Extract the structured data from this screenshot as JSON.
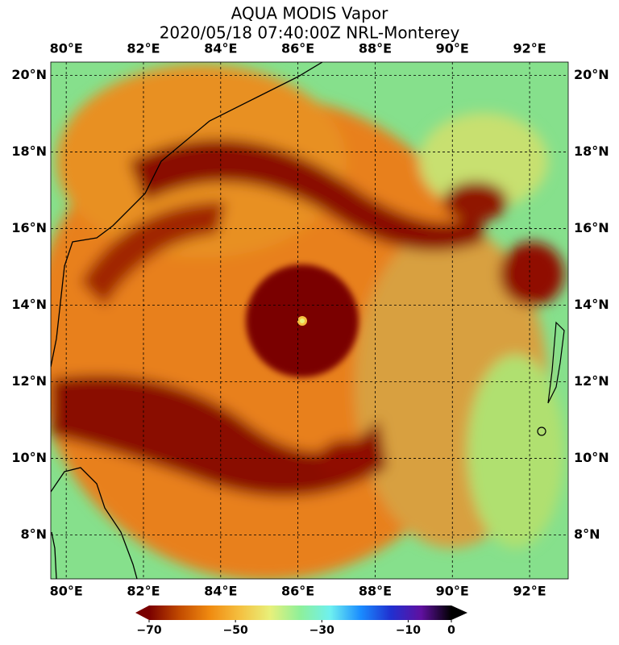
{
  "title": [
    "AQUA MODIS Vapor",
    "2020/05/18 07:40:00Z NRL-Monterey"
  ],
  "map": {
    "lonlim": [
      79.6,
      93.0
    ],
    "latlim": [
      6.85,
      20.35
    ],
    "lonticks": [
      {
        "value": 80,
        "label": "80°E"
      },
      {
        "value": 82,
        "label": "82°E"
      },
      {
        "value": 84,
        "label": "84°E"
      },
      {
        "value": 86,
        "label": "86°E"
      },
      {
        "value": 88,
        "label": "88°E"
      },
      {
        "value": 90,
        "label": "90°E"
      },
      {
        "value": 92,
        "label": "92°E"
      }
    ],
    "latticks": [
      {
        "value": 20,
        "label": "20°N"
      },
      {
        "value": 18,
        "label": "18°N"
      },
      {
        "value": 16,
        "label": "16°N"
      },
      {
        "value": 14,
        "label": "14°N"
      },
      {
        "value": 12,
        "label": "12°N"
      },
      {
        "value": 10,
        "label": "10°N"
      },
      {
        "value": 8,
        "label": "8°N"
      }
    ],
    "grid": true
  },
  "colorbar": {
    "lim": [
      -70,
      0
    ],
    "ticks": [
      {
        "value": -70,
        "label": "−70"
      },
      {
        "value": -50,
        "label": "−50"
      },
      {
        "value": -30,
        "label": "−30"
      },
      {
        "value": -10,
        "label": "−10"
      },
      0
    ],
    "colors": [
      "#7a0000",
      "#c24a00",
      "#f08a10",
      "#f5c040",
      "#e8f07a",
      "#8ef09a",
      "#6ef0f0",
      "#1a8cff",
      "#2030d0",
      "#6010a0",
      "#000000"
    ]
  }
}
